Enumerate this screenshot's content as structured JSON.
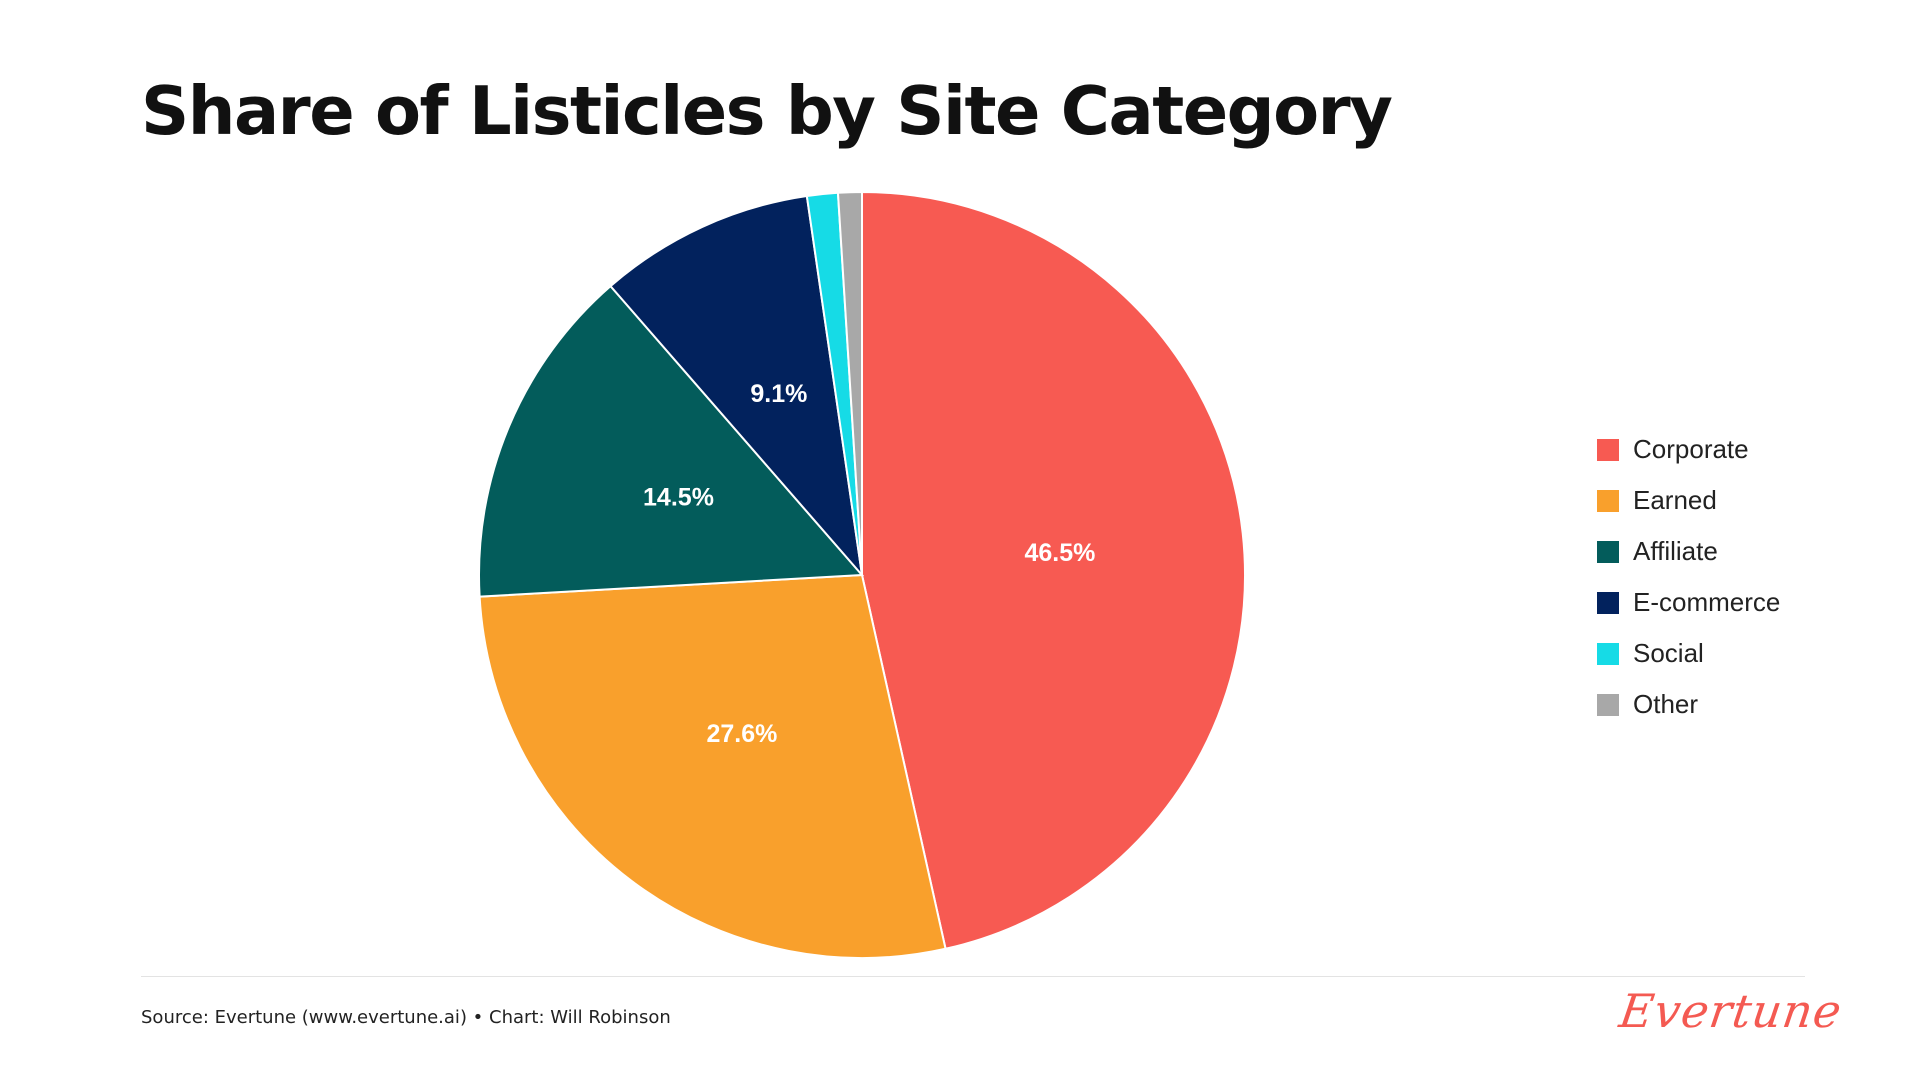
{
  "chart_data": {
    "type": "pie",
    "title": "Share of Listicles by Site Category",
    "slices": [
      {
        "label": "Corporate",
        "value": 46.5,
        "value_label": "46.5%",
        "color": "#f75a52"
      },
      {
        "label": "Earned",
        "value": 27.6,
        "value_label": "27.6%",
        "color": "#f9a02c"
      },
      {
        "label": "Affiliate",
        "value": 14.5,
        "value_label": "14.5%",
        "color": "#035c5b"
      },
      {
        "label": "E-commerce",
        "value": 9.1,
        "value_label": "9.1%",
        "color": "#02225d"
      },
      {
        "label": "Social",
        "value": 1.3,
        "value_label": "",
        "color": "#16dbe6"
      },
      {
        "label": "Other",
        "value": 1.0,
        "value_label": "",
        "color": "#a8a8a8"
      }
    ],
    "start": "12 o'clock",
    "direction": "clockwise",
    "legend_position": "right"
  },
  "footer": {
    "source": "Source: Evertune (www.evertune.ai) • Chart: Will Robinson",
    "logo_text": "Evertune"
  }
}
